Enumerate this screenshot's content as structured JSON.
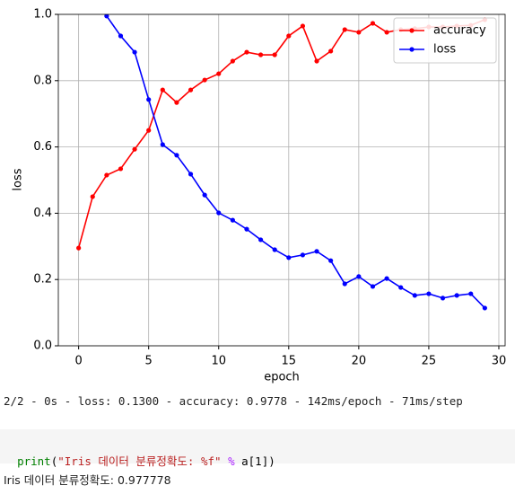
{
  "chart_data": {
    "type": "line",
    "x_label": "epoch",
    "y_label": "loss",
    "x": [
      0,
      1,
      2,
      3,
      4,
      5,
      6,
      7,
      8,
      9,
      10,
      11,
      12,
      13,
      14,
      15,
      16,
      17,
      18,
      19,
      20,
      21,
      22,
      23,
      24,
      25,
      26,
      27,
      28,
      29
    ],
    "series": [
      {
        "name": "accuracy",
        "color": "#ff0000",
        "values": [
          0.295,
          0.45,
          0.515,
          0.534,
          0.593,
          0.65,
          0.772,
          0.734,
          0.772,
          0.802,
          0.821,
          0.859,
          0.886,
          0.878,
          0.878,
          0.935,
          0.965,
          0.859,
          0.889,
          0.954,
          0.946,
          0.973,
          0.946,
          0.954,
          0.957,
          0.962,
          0.962,
          0.965,
          0.967,
          0.984
        ]
      },
      {
        "name": "loss",
        "color": "#0000ff",
        "values": [
          null,
          null,
          0.995,
          0.935,
          0.886,
          0.743,
          0.607,
          0.575,
          0.518,
          0.455,
          0.401,
          0.379,
          0.352,
          0.32,
          0.29,
          0.266,
          0.274,
          0.285,
          0.257,
          0.187,
          0.209,
          0.179,
          0.203,
          0.176,
          0.152,
          0.157,
          0.144,
          0.152,
          0.157,
          0.114
        ]
      }
    ],
    "xlim": [
      -1.45,
      30.45
    ],
    "xticks": [
      0,
      5,
      10,
      15,
      20,
      25,
      30
    ],
    "ylim": [
      0,
      1
    ],
    "yticks": [
      {
        "value": 0,
        "label": "0.0"
      },
      {
        "value": 0.2,
        "label": "0.2"
      },
      {
        "value": 0.4,
        "label": "0.4"
      },
      {
        "value": 0.6,
        "label": "0.6"
      },
      {
        "value": 0.8,
        "label": "0.8"
      },
      {
        "value": 1,
        "label": "1.0"
      }
    ],
    "grid": true,
    "legend": "upper right"
  },
  "output": "2/2 - 0s - loss: 0.1300 - accuracy: 0.9778 - 142ms/epoch - 71ms/step",
  "code": [
    "print",
    "(",
    "\"Iris 데이터 분류정확도: %f\"",
    " % ",
    "a[1]",
    ")"
  ],
  "result": "Iris 데이터 분류정확도: 0.977778"
}
